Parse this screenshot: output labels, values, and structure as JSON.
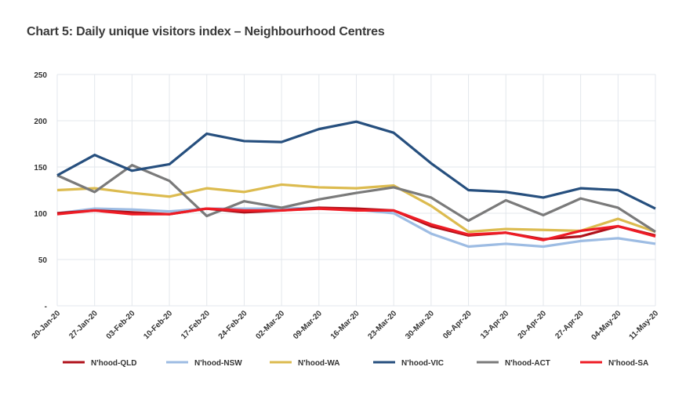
{
  "chart_data": {
    "type": "line",
    "title": "Chart 5: Daily unique visitors index – Neighbourhood Centres",
    "xlabel": "",
    "ylabel": "",
    "ylim": [
      0,
      250
    ],
    "yticks": [
      0,
      50,
      100,
      150,
      200,
      250
    ],
    "ytick_labels": [
      "-",
      "50",
      "100",
      "150",
      "200",
      "250"
    ],
    "grid": true,
    "legend": "bottom",
    "x": [
      "20-Jan-20",
      "27-Jan-20",
      "03-Feb-20",
      "10-Feb-20",
      "17-Feb-20",
      "24-Feb-20",
      "02-Mar-20",
      "09-Mar-20",
      "16-Mar-20",
      "23-Mar-20",
      "30-Mar-20",
      "06-Apr-20",
      "13-Apr-20",
      "20-Apr-20",
      "27-Apr-20",
      "04-May-20",
      "11-May-20"
    ],
    "series": [
      {
        "name": "N'hood-QLD",
        "color": "#b0121b",
        "values": [
          100,
          103,
          101,
          99,
          105,
          101,
          103,
          106,
          105,
          103,
          86,
          76,
          79,
          72,
          75,
          86,
          76
        ]
      },
      {
        "name": "N'hood-NSW",
        "color": "#9dbce3",
        "values": [
          100,
          105,
          104,
          102,
          105,
          105,
          105,
          106,
          104,
          100,
          78,
          64,
          67,
          64,
          70,
          73,
          67
        ]
      },
      {
        "name": "N'hood-WA",
        "color": "#dcbb4f",
        "values": [
          125,
          127,
          122,
          118,
          127,
          123,
          131,
          128,
          127,
          130,
          108,
          80,
          83,
          82,
          81,
          94,
          80
        ]
      },
      {
        "name": "N'hood-VIC",
        "color": "#264f7e",
        "values": [
          141,
          163,
          146,
          153,
          186,
          178,
          177,
          191,
          199,
          187,
          154,
          125,
          123,
          117,
          127,
          125,
          105
        ]
      },
      {
        "name": "N'hood-ACT",
        "color": "#7a7a7a",
        "values": [
          141,
          123,
          152,
          135,
          97,
          113,
          106,
          115,
          122,
          128,
          117,
          92,
          114,
          98,
          116,
          106,
          80
        ]
      },
      {
        "name": "N'hood-SA",
        "color": "#ee1c25",
        "values": [
          99,
          103,
          99,
          99,
          105,
          103,
          103,
          105,
          103,
          103,
          88,
          77,
          79,
          71,
          81,
          86,
          75
        ]
      }
    ]
  }
}
